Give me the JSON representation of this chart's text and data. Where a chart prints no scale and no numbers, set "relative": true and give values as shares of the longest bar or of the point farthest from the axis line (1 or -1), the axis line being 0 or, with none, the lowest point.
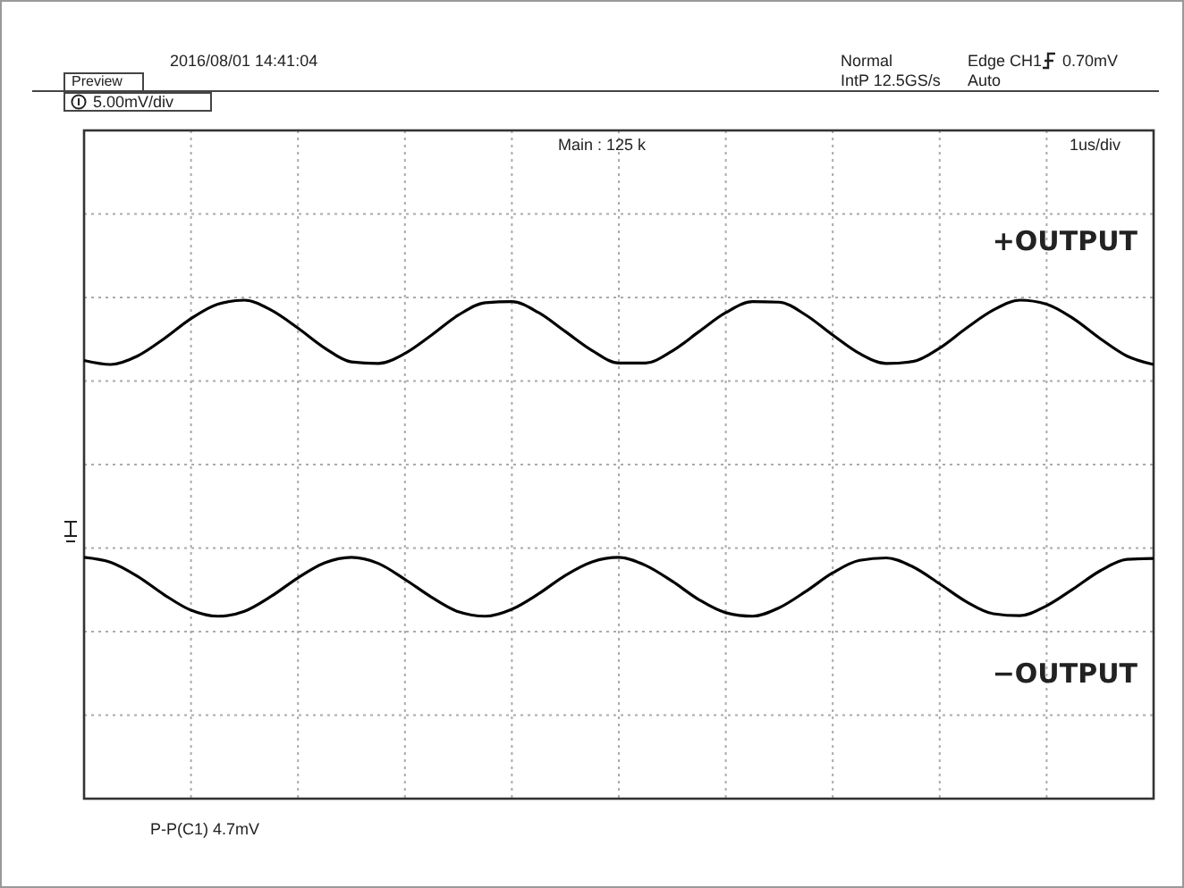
{
  "chart_data": {
    "type": "line",
    "relative": true,
    "grid": true,
    "legend": false,
    "line_style": "solid",
    "marker": "none",
    "categories": [
      null,
      null,
      null,
      null,
      null,
      null,
      null,
      null,
      null,
      null,
      null,
      null,
      null,
      null,
      null,
      null,
      null,
      null,
      null,
      null,
      null,
      null,
      null,
      null,
      null,
      null,
      null,
      null,
      null,
      null,
      null,
      null,
      null,
      null,
      null,
      null,
      null,
      null,
      null,
      null,
      null
    ],
    "series": [
      {
        "name": "+OUTPUT",
        "color": "#000000",
        "values": [
          0.879,
          0.871,
          0.888,
          0.923,
          0.963,
          0.992,
          1.0,
          0.98,
          0.944,
          0.904,
          0.876,
          0.873,
          0.893,
          0.93,
          0.97,
          0.995,
          0.997,
          0.975,
          0.937,
          0.899,
          0.874,
          0.874,
          0.898,
          0.937,
          0.975,
          0.997,
          0.996,
          0.97,
          0.93,
          0.893,
          0.873,
          0.877,
          0.904,
          0.944,
          0.98,
          1.0,
          0.992,
          0.963,
          0.923,
          0.888,
          0.871
        ]
      },
      {
        "name": "−OUTPUT",
        "color": "#000000",
        "values": [
          0.484,
          0.474,
          0.446,
          0.409,
          0.378,
          0.366,
          0.376,
          0.406,
          0.443,
          0.473,
          0.484,
          0.472,
          0.44,
          0.404,
          0.375,
          0.366,
          0.38,
          0.411,
          0.448,
          0.475,
          0.484,
          0.468,
          0.436,
          0.399,
          0.373,
          0.366,
          0.383,
          0.416,
          0.453,
          0.478,
          0.483,
          0.465,
          0.431,
          0.395,
          0.371,
          0.367,
          0.387,
          0.421,
          0.457,
          0.48,
          0.482
        ]
      }
    ],
    "annotations": [
      "2016/08/01 14:41:04",
      "Preview",
      "Normal",
      "IntP 12.5GS/s",
      "Edge CH1",
      "0.70mV",
      "Auto",
      "5.00mV/div",
      "Main : 125 k",
      "1us/div",
      "P-P(C1)  4.7mV"
    ]
  }
}
